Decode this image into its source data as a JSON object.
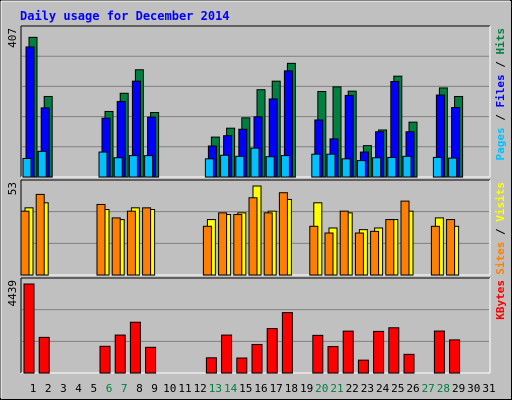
{
  "colors": {
    "background": "#C0C0C0",
    "hits": "#008040",
    "files": "#0000FF",
    "pages": "#00C0FF",
    "visits": "#FFFF00",
    "sites": "#FF8000",
    "kbytes": "#FF0000",
    "title": "#0000FF",
    "weekend_day": "#008040"
  },
  "chart_data": {
    "type": "bar",
    "title": "Daily usage for December 2014",
    "legend_position": "right",
    "grid": true,
    "days": [
      1,
      2,
      3,
      4,
      5,
      6,
      7,
      8,
      9,
      10,
      11,
      12,
      13,
      14,
      15,
      16,
      17,
      18,
      19,
      20,
      21,
      22,
      23,
      24,
      25,
      26,
      27,
      28,
      29,
      30,
      31
    ],
    "weekend_days": [
      6,
      7,
      13,
      14,
      20,
      21,
      27,
      28
    ],
    "panels": [
      {
        "id": "top",
        "max_label": "407",
        "ylim": [
          0,
          407
        ],
        "legend": [
          "Pages",
          "Files",
          "Hits"
        ],
        "series": [
          {
            "name": "Hits",
            "color_key": "hits",
            "values": [
              392,
              226,
              0,
              0,
              0,
              184,
              235,
              301,
              181,
              0,
              0,
              0,
              112,
              137,
              166,
              245,
              269,
              319,
              0,
              240,
              253,
              241,
              88,
              132,
              283,
              154,
              0,
              250,
              226,
              0,
              0
            ]
          },
          {
            "name": "Files",
            "color_key": "files",
            "values": [
              365,
              194,
              0,
              0,
              0,
              165,
              212,
              269,
              168,
              0,
              0,
              0,
              87,
              116,
              134,
              169,
              219,
              298,
              0,
              160,
              107,
              229,
              70,
              127,
              268,
              127,
              0,
              230,
              195,
              0,
              0
            ]
          },
          {
            "name": "Pages",
            "color_key": "pages",
            "values": [
              52,
              72,
              0,
              0,
              0,
              70,
              54,
              60,
              60,
              0,
              0,
              0,
              51,
              61,
              58,
              81,
              57,
              60,
              0,
              64,
              64,
              51,
              46,
              54,
              55,
              58,
              0,
              55,
              53,
              0,
              0
            ]
          }
        ]
      },
      {
        "id": "middle",
        "max_label": "53",
        "ylim": [
          0,
          53
        ],
        "legend": [
          "Sites",
          "Visits"
        ],
        "series": [
          {
            "name": "Visits",
            "color_key": "visits",
            "values": [
              40,
              43,
              0,
              0,
              0,
              39,
              33,
              40,
              39,
              0,
              0,
              0,
              33,
              36,
              37,
              53,
              38,
              45,
              0,
              43,
              28,
              37,
              27,
              28,
              33,
              38,
              0,
              34,
              29,
              0,
              0
            ]
          },
          {
            "name": "Sites",
            "color_key": "sites",
            "values": [
              38,
              48,
              0,
              0,
              0,
              42,
              34,
              38,
              40,
              0,
              0,
              0,
              29,
              37,
              36,
              46,
              37,
              49,
              0,
              29,
              25,
              38,
              25,
              26,
              33,
              44,
              0,
              29,
              33,
              0,
              0
            ]
          }
        ]
      },
      {
        "id": "bottom",
        "max_label": "4439",
        "ylim": [
          0,
          4439
        ],
        "legend": [
          "KBytes"
        ],
        "series": [
          {
            "name": "KBytes",
            "color_key": "kbytes",
            "values": [
              4439,
              1777,
              0,
              0,
              0,
              1332,
              1892,
              2532,
              1281,
              0,
              0,
              0,
              759,
              1892,
              747,
              1423,
              2215,
              3012,
              0,
              1878,
              1319,
              2089,
              641,
              2075,
              2257,
              931,
              0,
              2092,
              1652,
              0,
              0
            ]
          }
        ]
      }
    ]
  }
}
